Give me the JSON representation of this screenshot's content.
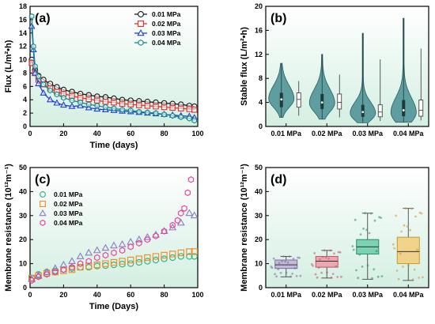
{
  "colors": {
    "c001": "#1a1a1a",
    "c002": "#e03030",
    "c003": "#1f3fcf",
    "c004": "#138a8a",
    "c_orange": "#f08a24",
    "c_purple": "#8a7cc4",
    "c_pink": "#ee3a9a",
    "c_green": "#27b27a",
    "violin": "#5f9ea0",
    "box1": "#b9a9d6",
    "box2": "#ef8f9d",
    "box3": "#55c8a0",
    "box4": "#f4c869",
    "panel_grad_top": "#ffffff",
    "panel_grad_bottom": "#d8f0e4"
  },
  "chart_data": [
    {
      "id": "a",
      "panel_label": "(a)",
      "type": "line",
      "xlabel": "Time (days)",
      "ylabel": "Flux (L/m²•h)",
      "xlim": [
        0,
        100
      ],
      "ylim": [
        0,
        18
      ],
      "xticks": [
        0,
        20,
        40,
        60,
        80,
        100
      ],
      "yticks": [
        0,
        2,
        4,
        6,
        8,
        10,
        12,
        14,
        16,
        18
      ],
      "legend_position": "top-right",
      "series": [
        {
          "name": "0.01 MPa",
          "marker": "circle",
          "color": "#1a1a1a",
          "x": [
            1,
            3,
            5,
            8,
            12,
            16,
            20,
            25,
            30,
            35,
            40,
            45,
            50,
            55,
            60,
            65,
            70,
            75,
            80,
            85,
            90,
            95,
            98
          ],
          "y": [
            10.0,
            8.5,
            7.6,
            7.0,
            6.4,
            5.9,
            5.5,
            5.2,
            4.9,
            4.7,
            4.5,
            4.4,
            4.2,
            4.0,
            3.9,
            3.8,
            3.7,
            3.6,
            3.5,
            3.4,
            3.3,
            3.1,
            3.0
          ]
        },
        {
          "name": "0.02 MPa",
          "marker": "square",
          "color": "#e03030",
          "x": [
            1,
            3,
            5,
            8,
            12,
            16,
            20,
            25,
            30,
            35,
            40,
            45,
            50,
            55,
            60,
            65,
            70,
            75,
            80,
            85,
            90,
            95,
            98
          ],
          "y": [
            9.5,
            8.0,
            7.0,
            6.3,
            5.7,
            5.2,
            4.9,
            4.6,
            4.3,
            4.1,
            3.9,
            3.7,
            3.6,
            3.4,
            3.3,
            3.2,
            3.1,
            3.0,
            2.9,
            2.8,
            2.7,
            2.6,
            2.5
          ]
        },
        {
          "name": "0.03 MPa",
          "marker": "triangle",
          "color": "#1f3fcf",
          "x": [
            1,
            2,
            3,
            5,
            8,
            12,
            16,
            20,
            25,
            30,
            35,
            40,
            45,
            50,
            55,
            60,
            65,
            70,
            75,
            80,
            85,
            90,
            95,
            98
          ],
          "y": [
            15.0,
            11.5,
            8.0,
            6.4,
            5.0,
            4.0,
            3.5,
            3.2,
            3.0,
            3.1,
            2.8,
            2.6,
            2.5,
            2.4,
            2.3,
            2.2,
            2.1,
            2.0,
            1.9,
            1.8,
            1.7,
            1.6,
            1.5,
            1.3
          ]
        },
        {
          "name": "0.04 MPa",
          "marker": "hexagon",
          "color": "#138a8a",
          "x": [
            1,
            2,
            3,
            5,
            8,
            12,
            16,
            20,
            25,
            30,
            35,
            40,
            45,
            50,
            55,
            60,
            65,
            70,
            75,
            80,
            85,
            90,
            95,
            98
          ],
          "y": [
            16.5,
            12.0,
            9.0,
            7.5,
            6.3,
            5.4,
            4.8,
            4.3,
            3.9,
            3.6,
            3.3,
            3.1,
            2.9,
            2.7,
            2.5,
            2.4,
            2.2,
            2.1,
            2.0,
            1.8,
            1.6,
            1.4,
            1.2,
            0.9
          ]
        }
      ]
    },
    {
      "id": "b",
      "panel_label": "(b)",
      "type": "violin",
      "xlabel": "",
      "ylabel": "Stable flux (L/m²•h)",
      "ylim": [
        0,
        20
      ],
      "yticks": [
        0,
        4,
        8,
        12,
        16,
        20
      ],
      "categories": [
        "0.01 MPa",
        "0.02 MPa",
        "0.03 MPa",
        "0.04 MPa"
      ],
      "groups": [
        {
          "min": 1.5,
          "max": 10.5,
          "q1": 3.2,
          "median": 4.5,
          "q3": 5.6,
          "mode": 4.6
        },
        {
          "min": 1.2,
          "max": 12.0,
          "q1": 2.9,
          "median": 4.0,
          "q3": 5.4,
          "mode": 3.9
        },
        {
          "min": 0.6,
          "max": 15.5,
          "q1": 1.6,
          "median": 2.4,
          "q3": 3.6,
          "mode": 2.2
        },
        {
          "min": 0.7,
          "max": 18.0,
          "q1": 1.7,
          "median": 2.7,
          "q3": 4.4,
          "mode": 2.3
        }
      ]
    },
    {
      "id": "c",
      "panel_label": "(c)",
      "type": "scatter",
      "xlabel": "Time (Days)",
      "ylabel": "Membrane resistance (10¹²m⁻¹)",
      "xlim": [
        0,
        100
      ],
      "ylim": [
        0,
        50
      ],
      "xticks": [
        0,
        20,
        40,
        60,
        80,
        100
      ],
      "yticks": [
        0,
        10,
        20,
        30,
        40,
        50
      ],
      "legend_position": "top-left",
      "series": [
        {
          "name": "0.01 MPa",
          "marker": "circle",
          "color": "#27b27a",
          "x": [
            1,
            5,
            10,
            15,
            20,
            25,
            30,
            35,
            40,
            45,
            50,
            55,
            60,
            65,
            70,
            75,
            80,
            85,
            90,
            95,
            98
          ],
          "y": [
            4.0,
            5.5,
            6.5,
            7.0,
            7.5,
            8.0,
            8.5,
            8.5,
            9.0,
            9.2,
            9.5,
            9.8,
            10.0,
            10.5,
            11.0,
            11.5,
            12.0,
            12.5,
            13.0,
            13.0,
            13.0
          ]
        },
        {
          "name": "0.02 MPa",
          "marker": "square",
          "color": "#f08a24",
          "x": [
            1,
            5,
            10,
            15,
            20,
            25,
            30,
            35,
            40,
            45,
            50,
            55,
            60,
            65,
            70,
            75,
            80,
            85,
            90,
            95,
            98
          ],
          "y": [
            4.0,
            5.0,
            6.0,
            6.5,
            7.0,
            7.5,
            8.5,
            9.0,
            9.5,
            10.0,
            10.5,
            11.0,
            11.5,
            12.0,
            12.5,
            13.0,
            13.5,
            14.0,
            14.5,
            15.0,
            15.0
          ]
        },
        {
          "name": "0.03 MPa",
          "marker": "triangle",
          "color": "#8a7cc4",
          "x": [
            1,
            5,
            10,
            15,
            20,
            25,
            30,
            35,
            40,
            45,
            50,
            55,
            60,
            65,
            70,
            75,
            80,
            85,
            90,
            95,
            98
          ],
          "y": [
            3.5,
            5.0,
            6.5,
            8.0,
            9.5,
            11.0,
            13.0,
            14.5,
            15.5,
            16.5,
            17.5,
            18.0,
            19.0,
            20.0,
            21.0,
            22.0,
            23.5,
            25.0,
            27.0,
            31.0,
            30.0
          ]
        },
        {
          "name": "0.04 MPa",
          "marker": "hexagon",
          "color": "#ee3a9a",
          "x": [
            1,
            5,
            10,
            15,
            20,
            25,
            30,
            35,
            40,
            45,
            50,
            55,
            60,
            65,
            70,
            75,
            80,
            85,
            88,
            90,
            92,
            94,
            96
          ],
          "y": [
            3.0,
            4.5,
            5.5,
            6.5,
            7.5,
            8.5,
            10.0,
            11.0,
            12.5,
            13.5,
            14.5,
            15.5,
            17.0,
            18.5,
            20.0,
            21.5,
            23.5,
            26.0,
            28.0,
            31.0,
            33.0,
            39.5,
            45.0
          ]
        }
      ]
    },
    {
      "id": "d",
      "panel_label": "(d)",
      "type": "box",
      "xlabel": "",
      "ylabel": "Membrane resistance (10¹²m⁻¹)",
      "ylim": [
        0,
        50
      ],
      "yticks": [
        0,
        10,
        20,
        30,
        40,
        50
      ],
      "categories": [
        "0.01 MPa",
        "0.02 MPa",
        "0.03 MPa",
        "0.04 MPa"
      ],
      "groups": [
        {
          "min": 4.5,
          "q1": 8.0,
          "median": 9.5,
          "q3": 11.5,
          "max": 13.0,
          "mean": 10.0
        },
        {
          "min": 4.0,
          "q1": 8.5,
          "median": 11.0,
          "q3": 13.0,
          "max": 15.5,
          "mean": 10.5
        },
        {
          "min": 3.5,
          "q1": 14.0,
          "median": 17.0,
          "q3": 20.0,
          "max": 31.0,
          "mean": 17.5
        },
        {
          "min": 3.0,
          "q1": 10.0,
          "median": 15.0,
          "q3": 21.0,
          "max": 33.0,
          "mean": 16.0
        }
      ]
    }
  ]
}
